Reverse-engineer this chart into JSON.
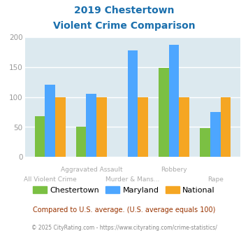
{
  "title_line1": "2019 Chestertown",
  "title_line2": "Violent Crime Comparison",
  "categories": [
    "All Violent Crime",
    "Aggravated Assault",
    "Murder & Mans...",
    "Robbery",
    "Rape"
  ],
  "chestertown": [
    68,
    50,
    0,
    148,
    48
  ],
  "maryland": [
    120,
    105,
    178,
    187,
    75
  ],
  "national": [
    100,
    100,
    100,
    100,
    100
  ],
  "colors": {
    "chestertown": "#7bc043",
    "maryland": "#4da6ff",
    "national": "#f5a623"
  },
  "ylim": [
    0,
    200
  ],
  "yticks": [
    0,
    50,
    100,
    150,
    200
  ],
  "plot_bg": "#dce9ef",
  "fig_bg": "#ffffff",
  "title_color": "#1a6fad",
  "tick_label_color": "#aaaaaa",
  "subtitle_text": "Compared to U.S. average. (U.S. average equals 100)",
  "subtitle_color": "#993300",
  "footer_text": "© 2025 CityRating.com - https://www.cityrating.com/crime-statistics/",
  "footer_color": "#888888",
  "legend_labels": [
    "Chestertown",
    "Maryland",
    "National"
  ],
  "xlabels_row1": [
    "",
    "Aggravated Assault",
    "",
    "Robbery",
    ""
  ],
  "xlabels_row2": [
    "All Violent Crime",
    "",
    "Murder & Mans...",
    "",
    "Rape"
  ]
}
